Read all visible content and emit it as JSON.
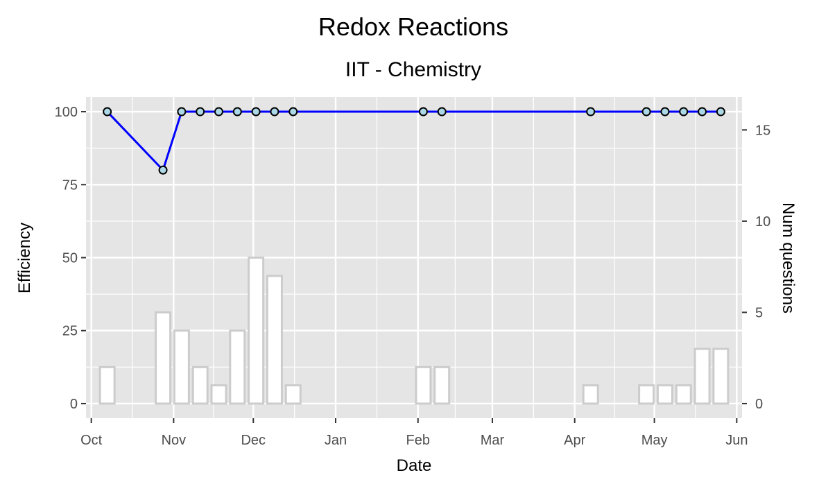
{
  "chart_data": {
    "type": "bar+line",
    "title": "Redox Reactions",
    "subtitle": "IIT - Chemistry",
    "xlabel": "Date",
    "ylabel_left": "Efficiency",
    "ylabel_right": "Num questions",
    "x_ticks": [
      "Oct",
      "Nov",
      "Dec",
      "Jan",
      "Feb",
      "Mar",
      "Apr",
      "May",
      "Jun"
    ],
    "y_left_ticks": [
      "0",
      "25",
      "50",
      "75",
      "100"
    ],
    "y_right_ticks": [
      "0",
      "5",
      "10",
      "15"
    ],
    "y_left_range": [
      -5,
      105
    ],
    "y_right_range": [
      -0.8,
      16.8
    ],
    "x_range": [
      "2020-09-29",
      "2021-06-03"
    ],
    "grid": true,
    "efficiency_series": {
      "dates": [
        "2020-10-07",
        "2020-10-28",
        "2020-11-04",
        "2020-11-11",
        "2020-11-18",
        "2020-11-25",
        "2020-12-02",
        "2020-12-09",
        "2020-12-16",
        "2021-02-03",
        "2021-02-10",
        "2021-04-07",
        "2021-04-28",
        "2021-05-05",
        "2021-05-12",
        "2021-05-19",
        "2021-05-26"
      ],
      "values": [
        100,
        80,
        100,
        100,
        100,
        100,
        100,
        100,
        100,
        100,
        100,
        100,
        100,
        100,
        100,
        100,
        100
      ]
    },
    "questions_series": {
      "dates": [
        "2020-10-07",
        "2020-10-28",
        "2020-11-04",
        "2020-11-11",
        "2020-11-18",
        "2020-11-25",
        "2020-12-02",
        "2020-12-09",
        "2020-12-16",
        "2021-02-03",
        "2021-02-10",
        "2021-04-07",
        "2021-04-28",
        "2021-05-05",
        "2021-05-12",
        "2021-05-19",
        "2021-05-26"
      ],
      "values": [
        2,
        5,
        4,
        2,
        1,
        4,
        8,
        7,
        1,
        2,
        2,
        1,
        1,
        1,
        1,
        3,
        3
      ]
    },
    "colors": {
      "panel": "#e5e5e5",
      "grid": "#ffffff",
      "line": "#0000ff",
      "point_fill": "#add8e6",
      "point_stroke": "#000000",
      "bar_fill": "#ffffff",
      "bar_stroke": "#cccccc"
    }
  }
}
